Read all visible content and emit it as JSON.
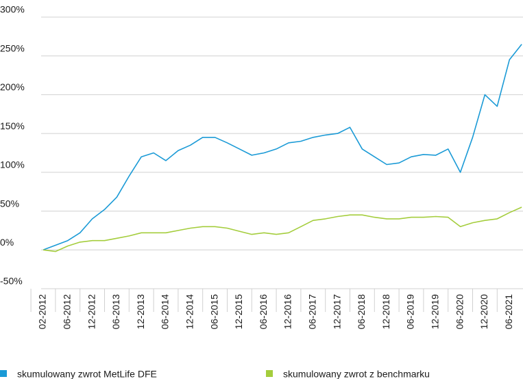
{
  "chart_data": {
    "type": "line",
    "categories": [
      "02-2012",
      null,
      "06-2012",
      null,
      "12-2012",
      null,
      "06-2013",
      null,
      "12-2013",
      null,
      "06-2014",
      null,
      "12-2014",
      null,
      "06-2015",
      null,
      "12-2015",
      null,
      "06-2016",
      null,
      "12-2016",
      null,
      "06-2017",
      null,
      "12-2017",
      null,
      "06-2018",
      null,
      "12-2018",
      null,
      "06-2019",
      null,
      "12-2019",
      null,
      "06-2020",
      null,
      "12-2020",
      null,
      "06-2021",
      null
    ],
    "series": [
      {
        "name": "skumulowany zwrot MetLife DFE",
        "color": "#1a9ad6",
        "values": [
          0,
          6,
          12,
          22,
          40,
          52,
          68,
          95,
          120,
          125,
          115,
          128,
          135,
          145,
          145,
          138,
          130,
          122,
          125,
          130,
          138,
          140,
          145,
          148,
          150,
          158,
          130,
          120,
          110,
          112,
          120,
          123,
          122,
          130,
          100,
          145,
          200,
          185,
          245,
          265
        ]
      },
      {
        "name": "skumulowany zwrot z benchmarku",
        "color": "#a4cd3c",
        "values": [
          0,
          -2,
          5,
          10,
          12,
          12,
          15,
          18,
          22,
          22,
          22,
          25,
          28,
          30,
          30,
          28,
          24,
          20,
          22,
          20,
          22,
          30,
          38,
          40,
          43,
          45,
          45,
          42,
          40,
          40,
          42,
          42,
          43,
          42,
          30,
          35,
          38,
          40,
          48,
          55
        ]
      }
    ],
    "ylim": [
      -50,
      300
    ],
    "yticks": [
      {
        "value": -50,
        "label": "-50%"
      },
      {
        "value": 0,
        "label": "0%"
      },
      {
        "value": 50,
        "label": "50%"
      },
      {
        "value": 100,
        "label": "100%"
      },
      {
        "value": 150,
        "label": "150%"
      },
      {
        "value": 200,
        "label": "200%"
      },
      {
        "value": 250,
        "label": "250%"
      },
      {
        "value": 300,
        "label": "300%"
      }
    ],
    "grid": true
  }
}
